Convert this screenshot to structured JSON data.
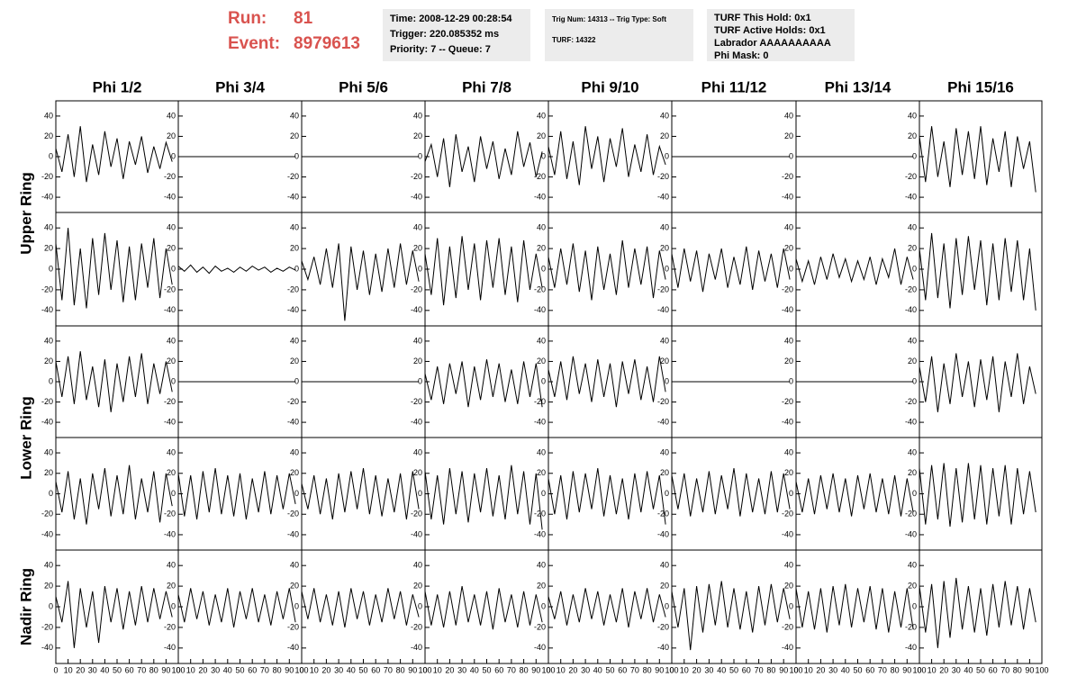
{
  "header": {
    "run_label": "Run:",
    "run": "81",
    "event_label": "Event:",
    "event": "8979613"
  },
  "info": [
    [
      "Time: 2008-12-29 00:28:54",
      "Trigger: 220.085352 ms",
      "Priority: 7 -- Queue: 7"
    ],
    [
      "Trig Num: 14313 -- Trig Type: Soft",
      "TURF: 14322"
    ],
    [
      "TURF This Hold: 0x1",
      "TURF Active Holds: 0x1",
      "Labrador AAAAAAAAAA",
      "Phi Mask: 0"
    ]
  ],
  "chart_data": {
    "type": "line",
    "color": "#000000",
    "columns": [
      "Phi 1/2",
      "Phi 3/4",
      "Phi 5/6",
      "Phi 7/8",
      "Phi 9/10",
      "Phi 11/12",
      "Phi 13/14",
      "Phi 15/16"
    ],
    "row_labels": [
      "Upper Ring",
      "Lower Ring",
      "Nadir Ring"
    ],
    "xlim": [
      0,
      100
    ],
    "xticks": [
      0,
      10,
      20,
      30,
      40,
      50,
      60,
      70,
      80,
      90,
      100
    ],
    "ylim": [
      -55,
      55
    ],
    "yticks": [
      -40,
      -20,
      0,
      20,
      40
    ],
    "x": [
      0,
      5,
      10,
      15,
      20,
      25,
      30,
      35,
      40,
      45,
      50,
      55,
      60,
      65,
      70,
      75,
      80,
      85,
      90,
      95
    ],
    "panels": [
      [
        [
          8,
          -15,
          22,
          -20,
          30,
          -25,
          12,
          -18,
          25,
          -10,
          18,
          -22,
          15,
          -8,
          20,
          -16,
          10,
          -12,
          14,
          -5
        ],
        [
          0,
          0,
          0,
          0,
          0,
          0,
          0,
          0,
          0,
          0,
          0,
          0,
          0,
          0,
          0,
          0,
          0,
          0,
          0,
          0
        ],
        [
          0,
          0,
          0,
          0,
          0,
          0,
          0,
          0,
          0,
          0,
          0,
          0,
          0,
          0,
          0,
          0,
          0,
          0,
          0,
          0
        ],
        [
          -5,
          12,
          -20,
          18,
          -30,
          22,
          -15,
          10,
          -25,
          20,
          -12,
          15,
          -22,
          8,
          -18,
          25,
          -10,
          14,
          -20,
          5
        ],
        [
          10,
          -18,
          25,
          -22,
          15,
          -28,
          30,
          -12,
          20,
          -25,
          18,
          -10,
          28,
          -20,
          12,
          -15,
          22,
          -18,
          10,
          -8
        ],
        [
          0,
          0,
          0,
          0,
          0,
          0,
          0,
          0,
          0,
          0,
          0,
          0,
          0,
          0,
          0,
          0,
          0,
          0,
          0,
          0
        ],
        [
          0,
          0,
          0,
          0,
          0,
          0,
          0,
          0,
          0,
          0,
          0,
          0,
          0,
          0,
          0,
          0,
          0,
          0,
          0,
          0
        ],
        [
          20,
          -25,
          30,
          -20,
          15,
          -30,
          28,
          -18,
          25,
          -22,
          30,
          -28,
          18,
          -15,
          25,
          -30,
          20,
          -12,
          15,
          -35
        ]
      ],
      [
        [
          25,
          -30,
          40,
          -35,
          20,
          -38,
          30,
          -25,
          35,
          -20,
          28,
          -32,
          22,
          -30,
          25,
          -18,
          30,
          -28,
          20,
          -15
        ],
        [
          3,
          -2,
          4,
          -3,
          2,
          -4,
          3,
          -2,
          1,
          -3,
          2,
          -2,
          3,
          -1,
          2,
          -3,
          1,
          -2,
          2,
          -1
        ],
        [
          8,
          -10,
          12,
          -15,
          20,
          -18,
          25,
          -50,
          22,
          -20,
          18,
          -25,
          15,
          -22,
          20,
          -18,
          25,
          -15,
          18,
          -12
        ],
        [
          15,
          -25,
          30,
          -35,
          22,
          -28,
          32,
          -20,
          25,
          -30,
          28,
          -18,
          30,
          -25,
          22,
          -32,
          28,
          -20,
          15,
          -18
        ],
        [
          12,
          -18,
          20,
          -15,
          25,
          -22,
          18,
          -30,
          22,
          -20,
          15,
          -25,
          28,
          -18,
          20,
          -15,
          22,
          -28,
          18,
          -10
        ],
        [
          15,
          -18,
          20,
          -12,
          18,
          -22,
          15,
          -10,
          20,
          -18,
          12,
          -15,
          22,
          -20,
          18,
          -12,
          15,
          -18,
          20,
          -10
        ],
        [
          10,
          -12,
          8,
          -15,
          12,
          -10,
          15,
          -8,
          10,
          -12,
          8,
          -10,
          12,
          -15,
          10,
          -8,
          20,
          -15,
          12,
          -10
        ],
        [
          20,
          -30,
          35,
          -28,
          25,
          -38,
          30,
          -25,
          32,
          -20,
          28,
          -35,
          25,
          -30,
          30,
          -22,
          28,
          -30,
          20,
          -40
        ]
      ],
      [
        [
          20,
          -15,
          25,
          -22,
          30,
          -18,
          15,
          -25,
          22,
          -30,
          18,
          -20,
          25,
          -15,
          28,
          -22,
          18,
          -12,
          20,
          -10
        ],
        [
          0,
          0,
          0,
          0,
          0,
          0,
          0,
          0,
          0,
          0,
          0,
          0,
          0,
          0,
          0,
          0,
          0,
          0,
          0,
          0
        ],
        [
          0,
          0,
          0,
          0,
          0,
          0,
          0,
          0,
          0,
          0,
          0,
          0,
          0,
          0,
          0,
          0,
          0,
          0,
          0,
          0
        ],
        [
          8,
          -18,
          15,
          -22,
          18,
          -12,
          20,
          -25,
          15,
          -18,
          22,
          -15,
          18,
          -20,
          12,
          -22,
          20,
          -15,
          18,
          -25
        ],
        [
          12,
          -15,
          20,
          -18,
          25,
          -12,
          18,
          -20,
          22,
          -15,
          18,
          -25,
          20,
          -12,
          22,
          -18,
          15,
          -20,
          25,
          -10
        ],
        [
          0,
          0,
          0,
          0,
          0,
          0,
          0,
          0,
          0,
          0,
          0,
          0,
          0,
          0,
          0,
          0,
          0,
          0,
          0,
          0
        ],
        [
          0,
          0,
          0,
          0,
          0,
          0,
          0,
          0,
          0,
          0,
          0,
          0,
          0,
          0,
          0,
          0,
          0,
          0,
          0,
          0
        ],
        [
          15,
          -20,
          25,
          -30,
          18,
          -22,
          28,
          -15,
          20,
          -25,
          22,
          -18,
          25,
          -30,
          20,
          -15,
          28,
          -22,
          15,
          -12
        ]
      ],
      [
        [
          12,
          -18,
          22,
          -25,
          15,
          -30,
          20,
          -15,
          25,
          -22,
          18,
          -20,
          28,
          -25,
          15,
          -18,
          22,
          -28,
          20,
          -12
        ],
        [
          20,
          -22,
          18,
          -25,
          22,
          -18,
          25,
          -20,
          18,
          -22,
          20,
          -25,
          15,
          -18,
          22,
          -20,
          18,
          -15,
          20,
          -10
        ],
        [
          10,
          -15,
          18,
          -20,
          15,
          -25,
          20,
          -18,
          22,
          -15,
          25,
          -20,
          18,
          -22,
          15,
          -18,
          20,
          -25,
          22,
          -15
        ],
        [
          22,
          -25,
          18,
          -30,
          25,
          -20,
          22,
          -28,
          20,
          -18,
          25,
          -22,
          18,
          -25,
          28,
          -20,
          22,
          -30,
          20,
          -35
        ],
        [
          15,
          -20,
          18,
          -25,
          22,
          -18,
          20,
          -15,
          25,
          -22,
          18,
          -20,
          15,
          -25,
          20,
          -18,
          22,
          -15,
          18,
          -30
        ],
        [
          18,
          -15,
          20,
          -22,
          15,
          -18,
          22,
          -20,
          18,
          -15,
          25,
          -22,
          20,
          -18,
          15,
          -20,
          22,
          -18,
          20,
          -15
        ],
        [
          12,
          -18,
          15,
          -20,
          18,
          -15,
          20,
          -18,
          15,
          -22,
          18,
          -15,
          20,
          -18,
          15,
          -20,
          18,
          -22,
          15,
          -18
        ],
        [
          25,
          -30,
          28,
          -25,
          30,
          -32,
          25,
          -28,
          30,
          -25,
          28,
          -30,
          25,
          -22,
          28,
          -30,
          25,
          -20,
          22,
          -18
        ]
      ],
      [
        [
          10,
          -15,
          25,
          -40,
          18,
          -20,
          15,
          -35,
          20,
          -15,
          18,
          -22,
          15,
          -18,
          20,
          -15,
          18,
          -12,
          15,
          -10
        ],
        [
          12,
          -15,
          18,
          -12,
          15,
          -18,
          12,
          -15,
          18,
          -20,
          15,
          -12,
          18,
          -15,
          12,
          -18,
          15,
          -12,
          18,
          -15
        ],
        [
          15,
          -12,
          18,
          -15,
          12,
          -18,
          15,
          -20,
          18,
          -12,
          15,
          -18,
          12,
          -15,
          18,
          -12,
          15,
          -18,
          12,
          -10
        ],
        [
          15,
          -18,
          12,
          -20,
          15,
          -18,
          20,
          -15,
          12,
          -18,
          15,
          -22,
          18,
          -15,
          12,
          -20,
          15,
          -18,
          12,
          -15
        ],
        [
          10,
          -12,
          15,
          -18,
          12,
          -15,
          18,
          -12,
          15,
          -18,
          12,
          -15,
          18,
          -20,
          15,
          -12,
          18,
          -15,
          12,
          -10
        ],
        [
          15,
          -20,
          18,
          -42,
          20,
          -25,
          22,
          -18,
          25,
          -20,
          18,
          -22,
          15,
          -25,
          20,
          -18,
          22,
          -15,
          18,
          -12
        ],
        [
          18,
          -20,
          15,
          -22,
          18,
          -25,
          20,
          -18,
          22,
          -20,
          18,
          -15,
          20,
          -22,
          18,
          -25,
          15,
          -20,
          18,
          -22
        ],
        [
          20,
          -25,
          22,
          -40,
          25,
          -30,
          28,
          -22,
          20,
          -25,
          18,
          -28,
          22,
          -20,
          25,
          -18,
          20,
          -22,
          18,
          -15
        ]
      ]
    ]
  }
}
